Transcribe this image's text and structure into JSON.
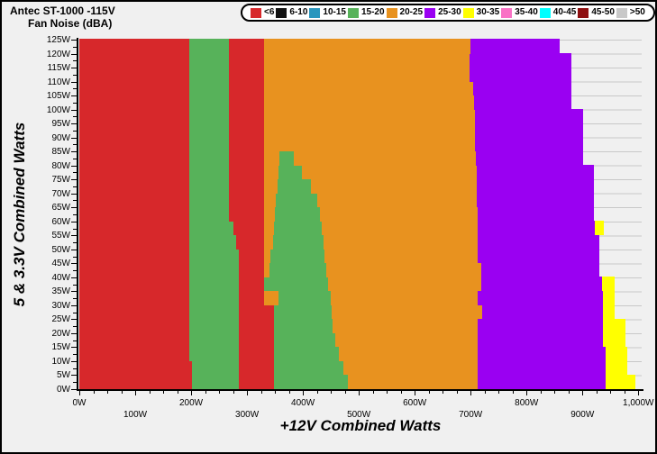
{
  "header": {
    "title_line1": "Antec ST-1000 -115V",
    "title_line2": "Fan Noise (dBA)"
  },
  "legend": {
    "items": [
      {
        "label": "<6",
        "color": "#d7282b"
      },
      {
        "label": "6-10",
        "color": "#111111"
      },
      {
        "label": "10-15",
        "color": "#2996be"
      },
      {
        "label": "15-20",
        "color": "#57b25a"
      },
      {
        "label": "20-25",
        "color": "#e8921f"
      },
      {
        "label": "25-30",
        "color": "#9a00f2"
      },
      {
        "label": "30-35",
        "color": "#ffff00"
      },
      {
        "label": "35-40",
        "color": "#f972c5"
      },
      {
        "label": "40-45",
        "color": "#00ffff"
      },
      {
        "label": "45-50",
        "color": "#8e0f10"
      },
      {
        "label": ">50",
        "color": "#c9c9c9"
      }
    ]
  },
  "axes": {
    "x_title": "+12V Combined Watts",
    "y_title": "5 & 3.3V Combined Watts",
    "x_major_ticks": [
      {
        "value": 0,
        "label": "0W",
        "row": 1
      },
      {
        "value": 100,
        "label": "100W",
        "row": 2
      },
      {
        "value": 200,
        "label": "200W",
        "row": 1
      },
      {
        "value": 300,
        "label": "300W",
        "row": 2
      },
      {
        "value": 400,
        "label": "400W",
        "row": 1
      },
      {
        "value": 500,
        "label": "500W",
        "row": 2
      },
      {
        "value": 600,
        "label": "600W",
        "row": 1
      },
      {
        "value": 700,
        "label": "700W",
        "row": 2
      },
      {
        "value": 800,
        "label": "800W",
        "row": 1
      },
      {
        "value": 900,
        "label": "900W",
        "row": 2
      },
      {
        "value": 1000,
        "label": "1,000W",
        "row": 1
      }
    ],
    "x_minor_step": 25,
    "y_major_ticks": [
      {
        "value": 0,
        "label": "0W"
      },
      {
        "value": 5,
        "label": "5W"
      },
      {
        "value": 10,
        "label": "10W"
      },
      {
        "value": 15,
        "label": "15W"
      },
      {
        "value": 20,
        "label": "20W"
      },
      {
        "value": 25,
        "label": "25W"
      },
      {
        "value": 30,
        "label": "30W"
      },
      {
        "value": 35,
        "label": "35W"
      },
      {
        "value": 40,
        "label": "40W"
      },
      {
        "value": 45,
        "label": "45W"
      },
      {
        "value": 50,
        "label": "50W"
      },
      {
        "value": 55,
        "label": "55W"
      },
      {
        "value": 60,
        "label": "60W"
      },
      {
        "value": 65,
        "label": "65W"
      },
      {
        "value": 70,
        "label": "70W"
      },
      {
        "value": 75,
        "label": "75W"
      },
      {
        "value": 80,
        "label": "80W"
      },
      {
        "value": 85,
        "label": "85W"
      },
      {
        "value": 90,
        "label": "90W"
      },
      {
        "value": 95,
        "label": "95W"
      },
      {
        "value": 100,
        "label": "100W"
      },
      {
        "value": 105,
        "label": "105W"
      },
      {
        "value": 110,
        "label": "110W"
      },
      {
        "value": 115,
        "label": "115W"
      },
      {
        "value": 120,
        "label": "120W"
      },
      {
        "value": 125,
        "label": "125W"
      }
    ],
    "y_minor_step": 2.5
  },
  "chart_data": {
    "type": "heatmap",
    "title": "Antec ST-1000 -115V Fan Noise (dBA)",
    "xlabel": "+12V Combined Watts",
    "ylabel": "5 & 3.3V Combined Watts",
    "x_range_watts": [
      0,
      1006
    ],
    "y_range_watts": [
      0,
      125
    ],
    "grid": "horizontal lines every 5W, color #c8c8c8, visible only where no data",
    "legend_position": "top-right pill",
    "noise_bins_dBA": [
      "<6",
      "6-10",
      "10-15",
      "15-20",
      "20-25",
      "25-30",
      "30-35",
      "35-40",
      "40-45",
      "45-50",
      ">50"
    ],
    "palette": {
      "<6": "#d7282b",
      "6-10": "#111111",
      "10-15": "#2996be",
      "15-20": "#57b25a",
      "20-25": "#e8921f",
      "25-30": "#9a00f2",
      "30-35": "#ffff00",
      "35-40": "#f972c5",
      "40-45": "#00ffff",
      "45-50": "#8e0f10",
      ">50": "#c9c9c9"
    },
    "rows_note": "rows bottom-up; each segment = [start_watts_12V, end_watts_12V, noise_bin]; area beyond last segment has no data",
    "rows": [
      {
        "y": [
          0,
          5
        ],
        "segs": [
          [
            0,
            202,
            "<6"
          ],
          [
            202,
            286,
            "15-20"
          ],
          [
            286,
            348,
            "<6"
          ],
          [
            348,
            480,
            "15-20"
          ],
          [
            480,
            713,
            "20-25"
          ],
          [
            713,
            941,
            "25-30"
          ],
          [
            941,
            995,
            "30-35"
          ]
        ]
      },
      {
        "y": [
          5,
          10
        ],
        "segs": [
          [
            0,
            202,
            "<6"
          ],
          [
            202,
            286,
            "15-20"
          ],
          [
            286,
            348,
            "<6"
          ],
          [
            348,
            472,
            "15-20"
          ],
          [
            472,
            713,
            "20-25"
          ],
          [
            713,
            941,
            "25-30"
          ],
          [
            941,
            981,
            "30-35"
          ]
        ]
      },
      {
        "y": [
          10,
          15
        ],
        "segs": [
          [
            0,
            196,
            "<6"
          ],
          [
            196,
            286,
            "15-20"
          ],
          [
            286,
            348,
            "<6"
          ],
          [
            348,
            464,
            "15-20"
          ],
          [
            464,
            713,
            "20-25"
          ],
          [
            713,
            941,
            "25-30"
          ],
          [
            941,
            981,
            "30-35"
          ]
        ]
      },
      {
        "y": [
          15,
          20
        ],
        "segs": [
          [
            0,
            196,
            "<6"
          ],
          [
            196,
            286,
            "15-20"
          ],
          [
            286,
            348,
            "<6"
          ],
          [
            348,
            458,
            "15-20"
          ],
          [
            458,
            713,
            "20-25"
          ],
          [
            713,
            937,
            "25-30"
          ],
          [
            937,
            977,
            "30-35"
          ]
        ]
      },
      {
        "y": [
          20,
          25
        ],
        "segs": [
          [
            0,
            196,
            "<6"
          ],
          [
            196,
            286,
            "15-20"
          ],
          [
            286,
            348,
            "<6"
          ],
          [
            348,
            453,
            "15-20"
          ],
          [
            453,
            713,
            "20-25"
          ],
          [
            713,
            937,
            "25-30"
          ],
          [
            937,
            977,
            "30-35"
          ]
        ]
      },
      {
        "y": [
          25,
          30
        ],
        "segs": [
          [
            0,
            196,
            "<6"
          ],
          [
            196,
            286,
            "15-20"
          ],
          [
            286,
            348,
            "<6"
          ],
          [
            348,
            452,
            "15-20"
          ],
          [
            452,
            721,
            "20-25"
          ],
          [
            721,
            937,
            "25-30"
          ],
          [
            937,
            958,
            "30-35"
          ]
        ]
      },
      {
        "y": [
          30,
          35
        ],
        "segs": [
          [
            0,
            196,
            "<6"
          ],
          [
            196,
            286,
            "15-20"
          ],
          [
            286,
            330,
            "<6"
          ],
          [
            330,
            356,
            "20-25"
          ],
          [
            356,
            450,
            "15-20"
          ],
          [
            450,
            712,
            "20-25"
          ],
          [
            712,
            937,
            "25-30"
          ],
          [
            937,
            958,
            "30-35"
          ]
        ]
      },
      {
        "y": [
          35,
          40
        ],
        "segs": [
          [
            0,
            196,
            "<6"
          ],
          [
            196,
            286,
            "15-20"
          ],
          [
            286,
            330,
            "<6"
          ],
          [
            330,
            445,
            "15-20"
          ],
          [
            445,
            719,
            "20-25"
          ],
          [
            719,
            935,
            "25-30"
          ],
          [
            935,
            958,
            "30-35"
          ]
        ]
      },
      {
        "y": [
          40,
          45
        ],
        "segs": [
          [
            0,
            196,
            "<6"
          ],
          [
            196,
            286,
            "15-20"
          ],
          [
            286,
            330,
            "<6"
          ],
          [
            330,
            340,
            "20-25"
          ],
          [
            340,
            441,
            "15-20"
          ],
          [
            441,
            719,
            "20-25"
          ],
          [
            719,
            930,
            "25-30"
          ]
        ]
      },
      {
        "y": [
          45,
          50
        ],
        "segs": [
          [
            0,
            196,
            "<6"
          ],
          [
            196,
            286,
            "15-20"
          ],
          [
            286,
            330,
            "<6"
          ],
          [
            330,
            342,
            "20-25"
          ],
          [
            342,
            438,
            "15-20"
          ],
          [
            438,
            712,
            "20-25"
          ],
          [
            712,
            930,
            "25-30"
          ]
        ]
      },
      {
        "y": [
          50,
          55
        ],
        "segs": [
          [
            0,
            196,
            "<6"
          ],
          [
            196,
            280,
            "15-20"
          ],
          [
            280,
            330,
            "<6"
          ],
          [
            330,
            347,
            "20-25"
          ],
          [
            347,
            437,
            "15-20"
          ],
          [
            437,
            712,
            "20-25"
          ],
          [
            712,
            930,
            "25-30"
          ]
        ]
      },
      {
        "y": [
          55,
          60
        ],
        "segs": [
          [
            0,
            196,
            "<6"
          ],
          [
            196,
            275,
            "15-20"
          ],
          [
            275,
            330,
            "<6"
          ],
          [
            330,
            348,
            "20-25"
          ],
          [
            348,
            434,
            "15-20"
          ],
          [
            434,
            712,
            "20-25"
          ],
          [
            712,
            922,
            "25-30"
          ],
          [
            922,
            938,
            "30-35"
          ]
        ]
      },
      {
        "y": [
          60,
          65
        ],
        "segs": [
          [
            0,
            196,
            "<6"
          ],
          [
            196,
            267,
            "15-20"
          ],
          [
            267,
            330,
            "<6"
          ],
          [
            330,
            350,
            "20-25"
          ],
          [
            350,
            430,
            "15-20"
          ],
          [
            430,
            712,
            "20-25"
          ],
          [
            712,
            920,
            "25-30"
          ]
        ]
      },
      {
        "y": [
          65,
          70
        ],
        "segs": [
          [
            0,
            196,
            "<6"
          ],
          [
            196,
            267,
            "15-20"
          ],
          [
            267,
            330,
            "<6"
          ],
          [
            330,
            352,
            "20-25"
          ],
          [
            352,
            426,
            "15-20"
          ],
          [
            426,
            711,
            "20-25"
          ],
          [
            711,
            920,
            "25-30"
          ]
        ]
      },
      {
        "y": [
          70,
          75
        ],
        "segs": [
          [
            0,
            196,
            "<6"
          ],
          [
            196,
            267,
            "15-20"
          ],
          [
            267,
            330,
            "<6"
          ],
          [
            330,
            354,
            "20-25"
          ],
          [
            354,
            415,
            "15-20"
          ],
          [
            415,
            711,
            "20-25"
          ],
          [
            711,
            920,
            "25-30"
          ]
        ]
      },
      {
        "y": [
          75,
          80
        ],
        "segs": [
          [
            0,
            196,
            "<6"
          ],
          [
            196,
            267,
            "15-20"
          ],
          [
            267,
            330,
            "<6"
          ],
          [
            330,
            356,
            "20-25"
          ],
          [
            356,
            398,
            "15-20"
          ],
          [
            398,
            711,
            "20-25"
          ],
          [
            711,
            920,
            "25-30"
          ]
        ]
      },
      {
        "y": [
          80,
          85
        ],
        "segs": [
          [
            0,
            196,
            "<6"
          ],
          [
            196,
            267,
            "15-20"
          ],
          [
            267,
            330,
            "<6"
          ],
          [
            330,
            358,
            "20-25"
          ],
          [
            358,
            383,
            "15-20"
          ],
          [
            383,
            710,
            "20-25"
          ],
          [
            710,
            902,
            "25-30"
          ]
        ]
      },
      {
        "y": [
          85,
          90
        ],
        "segs": [
          [
            0,
            196,
            "<6"
          ],
          [
            196,
            267,
            "15-20"
          ],
          [
            267,
            330,
            "<6"
          ],
          [
            330,
            708,
            "20-25"
          ],
          [
            708,
            902,
            "25-30"
          ]
        ]
      },
      {
        "y": [
          90,
          95
        ],
        "segs": [
          [
            0,
            196,
            "<6"
          ],
          [
            196,
            267,
            "15-20"
          ],
          [
            267,
            330,
            "<6"
          ],
          [
            330,
            708,
            "20-25"
          ],
          [
            708,
            902,
            "25-30"
          ]
        ]
      },
      {
        "y": [
          95,
          100
        ],
        "segs": [
          [
            0,
            196,
            "<6"
          ],
          [
            196,
            267,
            "15-20"
          ],
          [
            267,
            330,
            "<6"
          ],
          [
            330,
            707,
            "20-25"
          ],
          [
            707,
            902,
            "25-30"
          ]
        ]
      },
      {
        "y": [
          100,
          105
        ],
        "segs": [
          [
            0,
            196,
            "<6"
          ],
          [
            196,
            267,
            "15-20"
          ],
          [
            267,
            330,
            "<6"
          ],
          [
            330,
            706,
            "20-25"
          ],
          [
            706,
            880,
            "25-30"
          ]
        ]
      },
      {
        "y": [
          105,
          110
        ],
        "segs": [
          [
            0,
            196,
            "<6"
          ],
          [
            196,
            267,
            "15-20"
          ],
          [
            267,
            330,
            "<6"
          ],
          [
            330,
            704,
            "20-25"
          ],
          [
            704,
            880,
            "25-30"
          ]
        ]
      },
      {
        "y": [
          110,
          115
        ],
        "segs": [
          [
            0,
            196,
            "<6"
          ],
          [
            196,
            267,
            "15-20"
          ],
          [
            267,
            330,
            "<6"
          ],
          [
            330,
            698,
            "20-25"
          ],
          [
            698,
            880,
            "25-30"
          ]
        ]
      },
      {
        "y": [
          115,
          120
        ],
        "segs": [
          [
            0,
            196,
            "<6"
          ],
          [
            196,
            267,
            "15-20"
          ],
          [
            267,
            330,
            "<6"
          ],
          [
            330,
            698,
            "20-25"
          ],
          [
            698,
            880,
            "25-30"
          ]
        ]
      },
      {
        "y": [
          120,
          125
        ],
        "segs": [
          [
            0,
            196,
            "<6"
          ],
          [
            196,
            267,
            "15-20"
          ],
          [
            267,
            330,
            "<6"
          ],
          [
            330,
            700,
            "20-25"
          ],
          [
            700,
            860,
            "25-30"
          ]
        ]
      }
    ]
  }
}
